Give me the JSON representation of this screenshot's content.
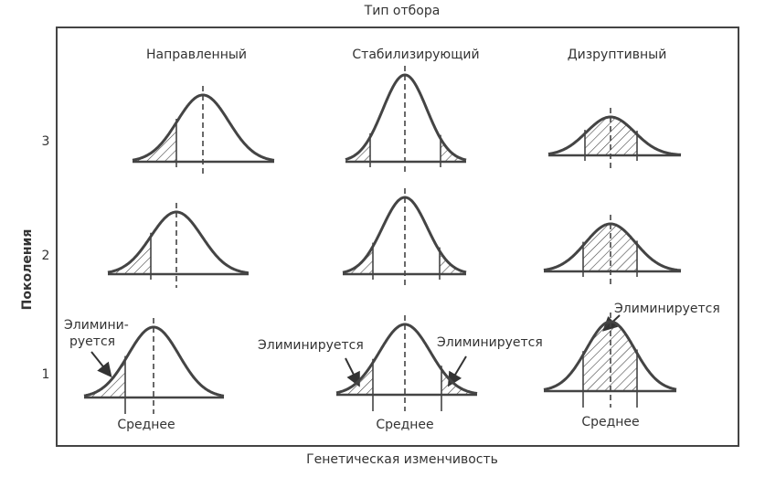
{
  "title": "Тип отбора",
  "columns": [
    "Направленный",
    "Стабилизирующий",
    "Дизруптивный"
  ],
  "y_label": "Поколения",
  "generations": [
    "3",
    "2",
    "1"
  ],
  "x_label": "Генетическая изменчивость",
  "annotations": {
    "directional": [
      "Элимини-",
      "руется"
    ],
    "stabilizing_left": "Элиминируется",
    "stabilizing_right": "Элиминируется",
    "disruptive": "Элиминируется"
  },
  "mean_labels": [
    "Среднее",
    "Среднее",
    "Среднее"
  ]
}
